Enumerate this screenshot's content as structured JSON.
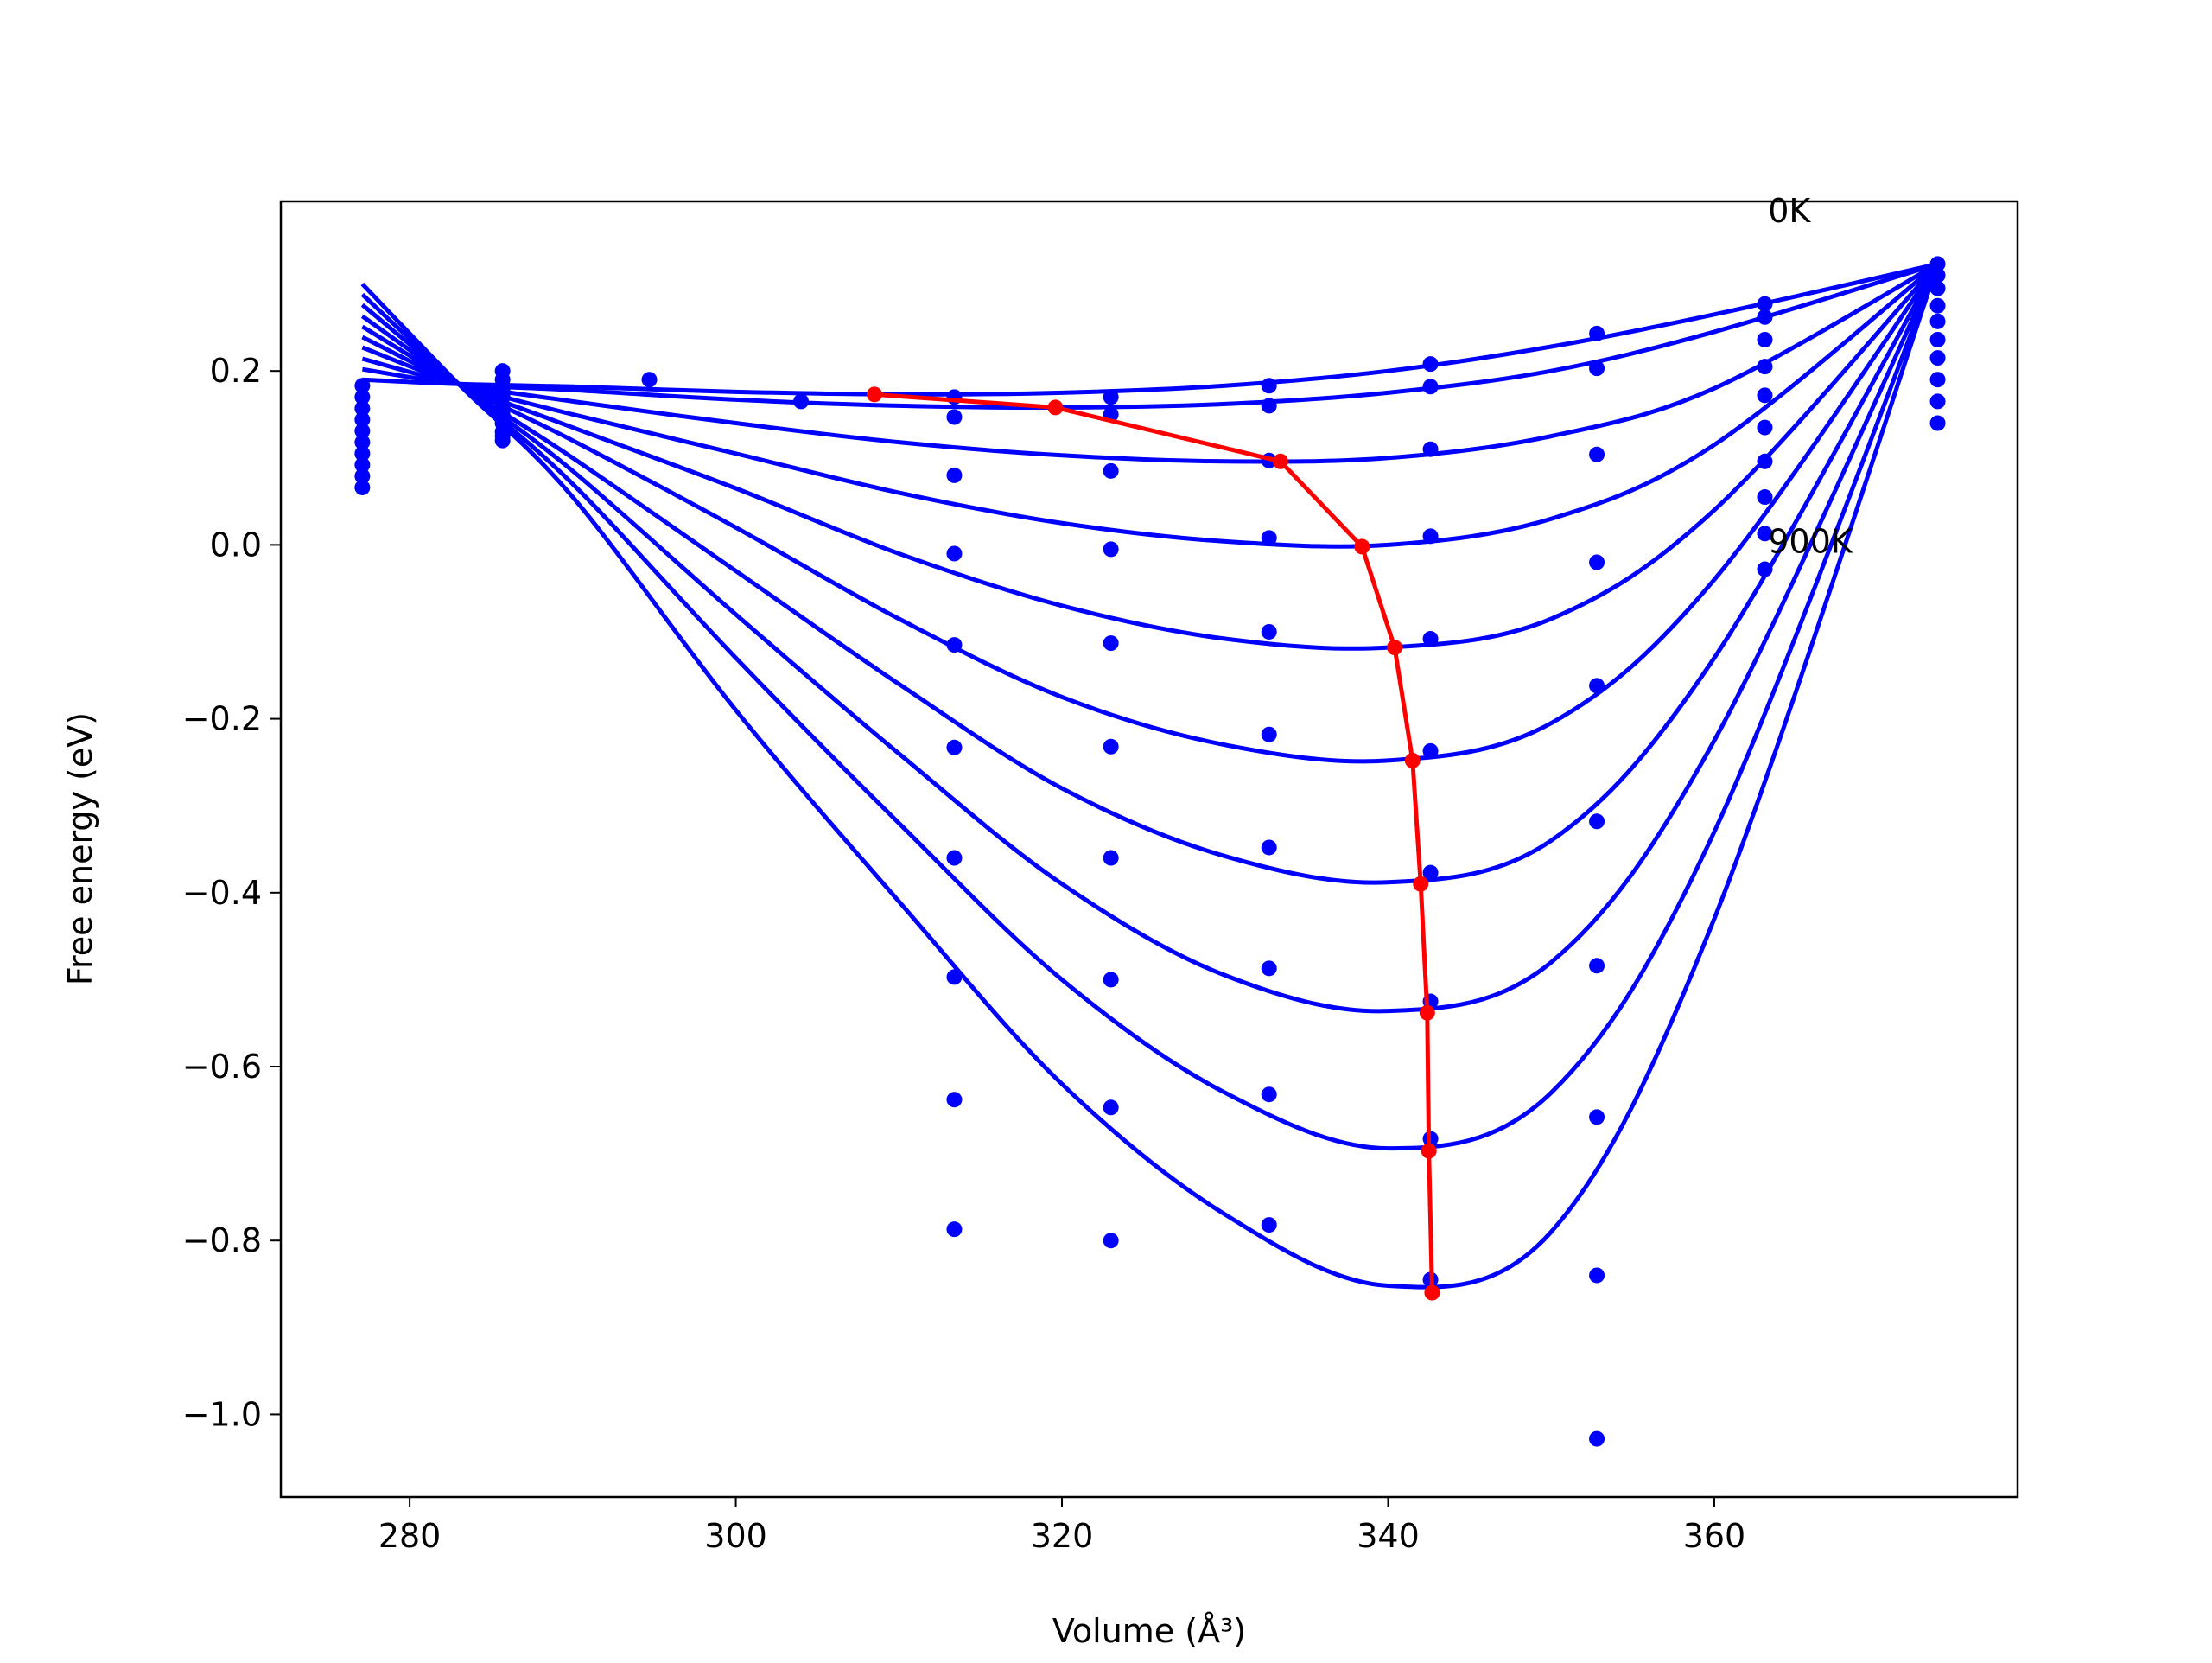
{
  "chart_data": {
    "type": "line",
    "xlabel": "Volume (Å³)",
    "ylabel": "Free energy (eV)",
    "xlim": [
      272.1,
      378.6
    ],
    "ylim": [
      -1.095,
      0.395
    ],
    "xticks": [
      280,
      300,
      320,
      340,
      360
    ],
    "yticks": [
      {
        "value": -1.0,
        "label": "−1.0"
      },
      {
        "value": -0.8,
        "label": "−0.8"
      },
      {
        "value": -0.6,
        "label": "−0.6"
      },
      {
        "value": -0.4,
        "label": "−0.4"
      },
      {
        "value": -0.2,
        "label": "−0.2"
      },
      {
        "value": 0.0,
        "label": "0.0"
      },
      0.2
    ],
    "annotations": [
      {
        "text": "0K",
        "x": 363.3,
        "y": 0.385
      },
      {
        "text": "900K",
        "x": 363.3,
        "y": 0.005
      }
    ],
    "curve_color": "#0000ff",
    "curve_x": [
      277.1,
      283,
      290,
      300,
      310,
      320,
      330,
      340,
      350,
      360,
      373.7
    ],
    "curves": [
      {
        "values": [
          0.19,
          0.185,
          0.182,
          0.176,
          0.173,
          0.175,
          0.183,
          0.2,
          0.228,
          0.265,
          0.323
        ]
      },
      {
        "values": [
          0.202,
          0.185,
          0.178,
          0.167,
          0.16,
          0.158,
          0.162,
          0.175,
          0.2,
          0.245,
          0.323
        ]
      },
      {
        "values": [
          0.214,
          0.185,
          0.165,
          0.14,
          0.118,
          0.103,
          0.096,
          0.1,
          0.125,
          0.18,
          0.323
        ]
      },
      {
        "values": [
          0.227,
          0.185,
          0.15,
          0.105,
          0.06,
          0.025,
          0.004,
          0.0,
          0.03,
          0.115,
          0.323
        ]
      },
      {
        "values": [
          0.239,
          0.185,
          0.135,
          0.065,
          -0.01,
          -0.07,
          -0.108,
          -0.118,
          -0.085,
          0.04,
          0.323
        ]
      },
      {
        "values": [
          0.251,
          0.185,
          0.12,
          0.02,
          -0.085,
          -0.175,
          -0.23,
          -0.248,
          -0.205,
          -0.04,
          0.323
        ]
      },
      {
        "values": [
          0.263,
          0.185,
          0.1,
          -0.03,
          -0.16,
          -0.28,
          -0.358,
          -0.388,
          -0.34,
          -0.13,
          0.323
        ]
      },
      {
        "values": [
          0.276,
          0.185,
          0.085,
          -0.08,
          -0.24,
          -0.39,
          -0.495,
          -0.536,
          -0.48,
          -0.225,
          0.323
        ]
      },
      {
        "values": [
          0.288,
          0.185,
          0.07,
          -0.13,
          -0.32,
          -0.5,
          -0.63,
          -0.694,
          -0.63,
          -0.33,
          0.323
        ]
      },
      {
        "values": [
          0.3,
          0.185,
          0.055,
          -0.19,
          -0.41,
          -0.62,
          -0.77,
          -0.852,
          -0.79,
          -0.43,
          0.323
        ]
      }
    ],
    "point_color": "#0000ff",
    "point_x": [
      277.1,
      285.7,
      294.7,
      304.0,
      313.4,
      323.0,
      332.7,
      342.6,
      352.8,
      363.1,
      373.7
    ],
    "points": [
      {
        "values": [
          0.183,
          0.2,
          0.19,
          0.165,
          0.17,
          0.17,
          0.183,
          0.208,
          0.243,
          0.277,
          0.323
        ]
      },
      {
        "values": [
          0.17,
          0.19,
          null,
          null,
          0.147,
          0.15,
          0.16,
          0.182,
          0.203,
          0.262,
          0.31
        ]
      },
      {
        "values": [
          0.157,
          0.18,
          null,
          null,
          0.08,
          0.085,
          0.097,
          0.11,
          0.104,
          0.236,
          0.295
        ]
      },
      {
        "values": [
          0.144,
          0.17,
          null,
          null,
          -0.01,
          -0.005,
          0.008,
          0.01,
          -0.02,
          0.205,
          0.275
        ]
      },
      {
        "values": [
          0.131,
          0.16,
          null,
          null,
          -0.115,
          -0.113,
          -0.1,
          -0.108,
          -0.162,
          0.172,
          0.257
        ]
      },
      {
        "values": [
          0.118,
          0.15,
          null,
          null,
          -0.233,
          -0.232,
          -0.218,
          -0.237,
          -0.318,
          0.135,
          0.236
        ]
      },
      {
        "values": [
          0.105,
          0.14,
          null,
          null,
          -0.36,
          -0.36,
          -0.348,
          -0.377,
          -0.484,
          0.096,
          0.215
        ]
      },
      {
        "values": [
          0.092,
          0.13,
          null,
          null,
          -0.497,
          -0.5,
          -0.487,
          -0.525,
          -0.658,
          0.055,
          0.19
        ]
      },
      {
        "values": [
          0.079,
          0.125,
          null,
          null,
          -0.638,
          -0.647,
          -0.632,
          -0.683,
          -0.84,
          0.013,
          0.165
        ]
      },
      {
        "values": [
          0.066,
          0.12,
          null,
          null,
          -0.787,
          -0.8,
          -0.782,
          -0.845,
          -1.028,
          -0.028,
          0.14
        ]
      }
    ],
    "minima": {
      "color": "#ff0000",
      "x": [
        308.5,
        319.6,
        333.4,
        338.4,
        340.4,
        341.5,
        342.0,
        342.4,
        342.5,
        342.7
      ],
      "values": [
        0.173,
        0.158,
        0.096,
        -0.002,
        -0.118,
        -0.248,
        -0.39,
        -0.538,
        -0.697,
        -0.86
      ]
    }
  }
}
